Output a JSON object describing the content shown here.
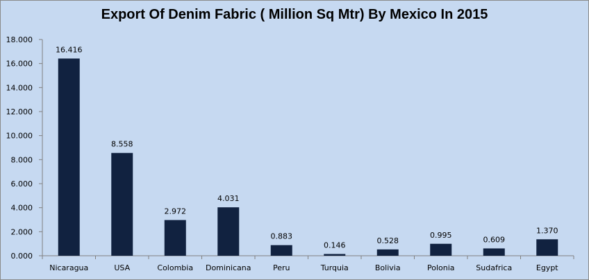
{
  "chart_data": {
    "type": "bar",
    "title": "Export  Of Denim Fabric ( Million Sq Mtr) By Mexico In 2015",
    "categories": [
      "Nicaragua",
      "USA",
      "Colombia",
      "Dominicana",
      "Peru",
      "Turquia",
      "Bolivia",
      "Polonia",
      "Sudafrica",
      "Egypt"
    ],
    "values": [
      16.416,
      8.558,
      2.972,
      4.031,
      0.883,
      0.146,
      0.528,
      0.995,
      0.609,
      1.37
    ],
    "data_labels": [
      "16.416",
      "8.558",
      "2.972",
      "4.031",
      "0.883",
      "0.146",
      "0.528",
      "0.995",
      "0.609",
      "1.370"
    ],
    "y_ticks": [
      0,
      2,
      4,
      6,
      8,
      10,
      12,
      14,
      16,
      18
    ],
    "y_tick_labels": [
      "0.000",
      "2.000",
      "4.000",
      "6.000",
      "8.000",
      "10.000",
      "12.000",
      "14.000",
      "16.000",
      "18.000"
    ],
    "ylim": [
      0,
      18
    ],
    "xlabel": "",
    "ylabel": "",
    "grid": false,
    "legend": "none",
    "colors": {
      "bar": "#112240",
      "background": "#c6d9f1",
      "axis": "#808080"
    }
  }
}
